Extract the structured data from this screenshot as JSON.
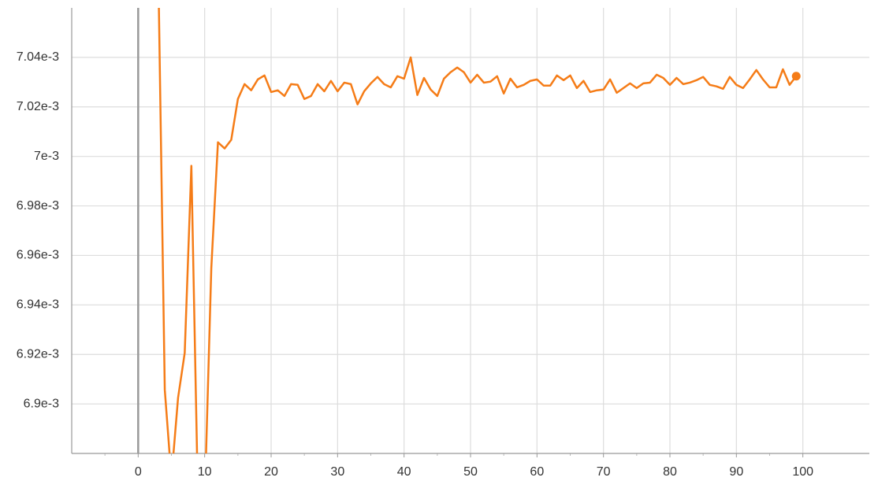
{
  "chart_data": {
    "type": "line",
    "x": [
      3,
      4,
      5,
      6,
      7,
      8,
      9,
      10,
      11,
      12,
      13,
      14,
      15,
      16,
      17,
      18,
      19,
      20,
      21,
      22,
      23,
      24,
      25,
      26,
      27,
      28,
      29,
      30,
      31,
      32,
      33,
      34,
      35,
      36,
      37,
      38,
      39,
      40,
      41,
      42,
      43,
      44,
      45,
      46,
      47,
      48,
      49,
      50,
      51,
      52,
      53,
      54,
      55,
      56,
      57,
      58,
      59,
      60,
      61,
      62,
      63,
      64,
      65,
      66,
      67,
      68,
      69,
      70,
      71,
      72,
      73,
      74,
      75,
      76,
      77,
      78,
      79,
      80,
      81,
      82,
      83,
      84,
      85,
      86,
      87,
      88,
      89,
      90,
      91,
      92,
      93,
      94,
      95,
      96,
      97,
      98,
      99
    ],
    "series": [
      {
        "color": "#f57c17",
        "values": [
          0.00708,
          0.0069057,
          0.00687,
          0.0069025,
          0.0069206,
          0.0069962,
          0.00686,
          0.00686,
          0.0069549,
          0.0070057,
          0.0070032,
          0.0070067,
          0.0070232,
          0.0070292,
          0.0070267,
          0.0070311,
          0.0070327,
          0.007026,
          0.0070267,
          0.0070244,
          0.0070292,
          0.0070289,
          0.0070232,
          0.0070244,
          0.0070292,
          0.0070263,
          0.0070305,
          0.0070263,
          0.0070298,
          0.0070292,
          0.007021,
          0.0070263,
          0.0070295,
          0.0070321,
          0.0070292,
          0.0070279,
          0.0070324,
          0.0070314,
          0.00704,
          0.0070248,
          0.0070317,
          0.007027,
          0.0070244,
          0.0070314,
          0.007034,
          0.0070359,
          0.007034,
          0.0070298,
          0.007033,
          0.0070298,
          0.0070302,
          0.0070324,
          0.0070254,
          0.0070314,
          0.0070279,
          0.0070289,
          0.0070305,
          0.0070311,
          0.0070286,
          0.0070286,
          0.0070327,
          0.0070308,
          0.0070327,
          0.0070276,
          0.0070305,
          0.007026,
          0.0070267,
          0.007027,
          0.0070311,
          0.0070257,
          0.0070276,
          0.0070295,
          0.0070276,
          0.0070295,
          0.0070298,
          0.007033,
          0.0070317,
          0.0070289,
          0.0070317,
          0.0070292,
          0.0070298,
          0.0070308,
          0.0070321,
          0.0070289,
          0.0070283,
          0.0070273,
          0.0070321,
          0.0070289,
          0.0070276,
          0.0070311,
          0.0070349,
          0.0070311,
          0.0070279,
          0.0070279,
          0.0070352,
          0.0070289,
          0.0070324
        ]
      }
    ],
    "xlim": [
      -10,
      110
    ],
    "xticks": [
      0,
      10,
      20,
      30,
      40,
      50,
      60,
      70,
      80,
      90,
      100
    ],
    "ylim": [
      0.00688,
      0.00706
    ],
    "yticks": [
      {
        "value": 0.0069,
        "label": "6.9e-3"
      },
      {
        "value": 0.00692,
        "label": "6.92e-3"
      },
      {
        "value": 0.00694,
        "label": "6.94e-3"
      },
      {
        "value": 0.00696,
        "label": "6.96e-3"
      },
      {
        "value": 0.00698,
        "label": "6.98e-3"
      },
      {
        "value": 0.007,
        "label": "7e-3"
      },
      {
        "value": 0.00702,
        "label": "7.02e-3"
      },
      {
        "value": 0.00704,
        "label": "7.04e-3"
      }
    ],
    "grid": true
  }
}
